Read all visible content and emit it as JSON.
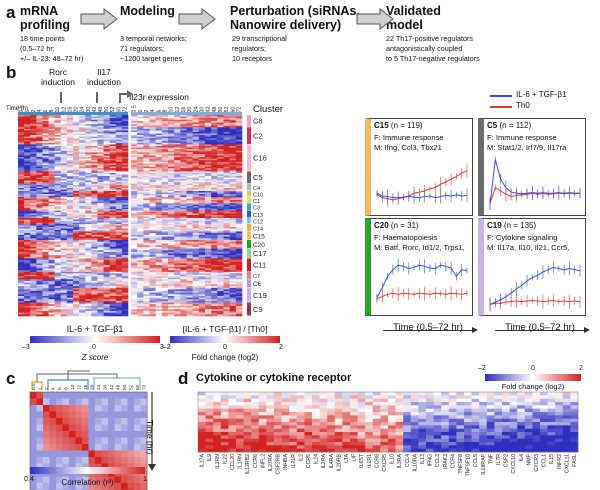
{
  "panel_labels": {
    "a": "a",
    "b": "b",
    "c": "c",
    "d": "d"
  },
  "flow": {
    "steps": [
      {
        "title": "mRNA\nprofiling",
        "detail": [
          "18 time points",
          "(0.5–72 hr;",
          "+/– IL-23: 48–72 hr)"
        ]
      },
      {
        "title": "Modeling",
        "detail": [
          "3 temporal networks;",
          "71 regulators;",
          "~1200 target genes"
        ]
      },
      {
        "title": "Perturbation (siRNAs,\nNanowire delivery)",
        "detail": [
          "29 transcriptional",
          "regulators;",
          "10 receptors"
        ]
      },
      {
        "title": "Validated\nmodel",
        "detail": [
          "22 Th17-positive regulators",
          "antagonistically coupled",
          "to 5 Th17-negative regulators"
        ]
      }
    ]
  },
  "heatmap_b": {
    "annotations": [
      "Rorc\ninduction",
      "Il17\ninduction",
      "Il23r expression"
    ],
    "time_axis_label": "Time (h)",
    "time_ticks": [
      "0.5",
      "1",
      "2",
      "4",
      "6",
      "8",
      "10",
      "12",
      "16",
      "20",
      "24",
      "30",
      "42",
      "48",
      "50",
      "52",
      "60",
      "72"
    ],
    "cluster_title": "Cluster",
    "clusters": [
      {
        "name": "C8",
        "color": "#f5a0c0"
      },
      {
        "name": "C2",
        "color": "#d3304f"
      },
      {
        "name": "C16",
        "color": "#f4b8d8"
      },
      {
        "name": "C5",
        "color": "#6b6b6b"
      },
      {
        "name": "C4",
        "color": "#b5b5b5"
      },
      {
        "name": "C10",
        "color": "#c9d24a"
      },
      {
        "name": "C1",
        "color": "#f0e03c"
      },
      {
        "name": "C3",
        "color": "#3aa6d8"
      },
      {
        "name": "C13",
        "color": "#2f62b0"
      },
      {
        "name": "C12",
        "color": "#7fc6e8"
      },
      {
        "name": "C14",
        "color": "#f7a83c"
      },
      {
        "name": "C15",
        "color": "#f2b866"
      },
      {
        "name": "C20",
        "color": "#2ca02c"
      },
      {
        "name": "C17",
        "color": "#8fd48f"
      },
      {
        "name": "C11",
        "color": "#c6202a"
      },
      {
        "name": "C7",
        "color": "#e88080"
      },
      {
        "name": "C6",
        "color": "#b59ad6"
      },
      {
        "name": "C19",
        "color": "#c9b4e4"
      },
      {
        "name": "C9",
        "color": "#8c3b55"
      }
    ],
    "colorbar_left": {
      "title": "IL-6 + TGF-β1",
      "min": "–3",
      "mid": "0",
      "max": "3",
      "label": "Z score"
    },
    "colorbar_right": {
      "title": "[IL-6 + TGF-β1] / [Th0]",
      "min": "–2",
      "mid": "0",
      "max": "2",
      "label": "Fold change (log2)"
    }
  },
  "line_panels": {
    "legend": [
      {
        "label": "IL-6 + TGF-β1",
        "color": "#3a4fd0"
      },
      {
        "label": "Th0",
        "color": "#e03a3a"
      }
    ],
    "panels": [
      {
        "id": "C15",
        "n": "(n = 119)",
        "F": "F: Immune response",
        "M": "M: Ifng, Ccl3, Tbx21",
        "bar": "#f2b866",
        "blue": [
          0.3,
          0.25,
          0.24,
          0.22,
          0.22,
          0.23,
          0.24,
          0.23,
          0.22,
          0.24,
          0.25,
          0.22,
          0.24,
          0.26,
          0.25,
          0.27,
          0.25,
          0.26
        ],
        "red": [
          0.28,
          0.22,
          0.2,
          0.18,
          0.2,
          0.22,
          0.25,
          0.3,
          0.32,
          0.34,
          0.38,
          0.4,
          0.46,
          0.5,
          0.55,
          0.6,
          0.66,
          0.7
        ]
      },
      {
        "id": "C5",
        "n": "(n = 112)",
        "F": "F: Immune response",
        "M": "M: Stat1/2, Irf7/9, Il17ra",
        "bar": "#6b6b6b",
        "blue": [
          0.1,
          0.9,
          0.55,
          0.4,
          0.32,
          0.3,
          0.29,
          0.3,
          0.31,
          0.3,
          0.31,
          0.3,
          0.3,
          0.31,
          0.3,
          0.31,
          0.3,
          0.3
        ],
        "red": [
          0.12,
          0.4,
          0.34,
          0.28,
          0.24,
          0.26,
          0.27,
          0.28,
          0.3,
          0.28,
          0.3,
          0.28,
          0.29,
          0.3,
          0.29,
          0.3,
          0.29,
          0.3
        ]
      },
      {
        "id": "C20",
        "n": "(n = 31)",
        "F": "F: Haematopoiesis",
        "M": "M: Batf, Rorc, Id1/2, Trps1,",
        "bar": "#2ca02c",
        "blue": [
          0.22,
          0.4,
          0.6,
          0.72,
          0.8,
          0.78,
          0.74,
          0.76,
          0.8,
          0.78,
          0.75,
          0.74,
          0.8,
          0.78,
          0.75,
          0.6,
          0.72,
          0.7
        ],
        "red": [
          0.2,
          0.24,
          0.28,
          0.3,
          0.28,
          0.3,
          0.29,
          0.28,
          0.3,
          0.29,
          0.28,
          0.3,
          0.29,
          0.28,
          0.3,
          0.29,
          0.28,
          0.3
        ]
      },
      {
        "id": "C19",
        "n": "(n = 135)",
        "F": "F: Cytokine signaling",
        "M": "M: Il17a, Il10, Il21, Ccr5,",
        "bar": "#c9b4e4",
        "blue": [
          0.1,
          0.14,
          0.18,
          0.24,
          0.3,
          0.38,
          0.44,
          0.52,
          0.58,
          0.62,
          0.68,
          0.72,
          0.76,
          0.74,
          0.72,
          0.74,
          0.72,
          0.7
        ],
        "red": [
          0.1,
          0.12,
          0.12,
          0.14,
          0.15,
          0.16,
          0.15,
          0.16,
          0.17,
          0.16,
          0.15,
          0.16,
          0.17,
          0.15,
          0.16,
          0.15,
          0.16,
          0.15
        ]
      }
    ],
    "xaxis_label": "Time (0.5–72 hr)"
  },
  "panel_c": {
    "ticks_left": [
      "0.5",
      "1",
      "2",
      "4",
      "6",
      "8",
      "10",
      "12",
      "16"
    ],
    "ticks_right": [
      "20",
      "24",
      "30",
      "42",
      "48",
      "50",
      "52",
      "60",
      "72"
    ],
    "axis_label": "Time (hr)",
    "colorbar": {
      "min": "0.4",
      "max": "1",
      "label": "Correlation (r²)"
    }
  },
  "panel_d": {
    "title": "Cytokine or cytokine receptor",
    "colorbar": {
      "min": "–2",
      "mid": "0",
      "max": "2",
      "label": "Fold change (log2)"
    },
    "genes": [
      "IL17A",
      "IL9",
      "IL1RN",
      "IL22",
      "CCL20",
      "IL1RN",
      "IL12RB2",
      "CCR6",
      "INFL2",
      "IL27RA",
      "CSF2RB",
      "INHBA",
      "IL21R",
      "IL2",
      "CCR5",
      "IL24",
      "IL2RA",
      "IL4RA",
      "IL20RB",
      "LTA",
      "LIF",
      "IL6ST",
      "IL1R1",
      "CCR8",
      "CXCR5",
      "IL10",
      "IL3RA",
      "CCL4",
      "IL10RA",
      "IL13",
      "IFNG",
      "CCL3",
      "IRAK3",
      "CCR4",
      "TNFSF8",
      "TNFSF10",
      "CCL5",
      "IL18RAP",
      "TNF",
      "IL7R",
      "CSF2",
      "CXCL10",
      "IL4",
      "NMP",
      "CXCR3",
      "CCL1",
      "IL15",
      "INFR2",
      "CXCL11",
      "FASL"
    ]
  }
}
